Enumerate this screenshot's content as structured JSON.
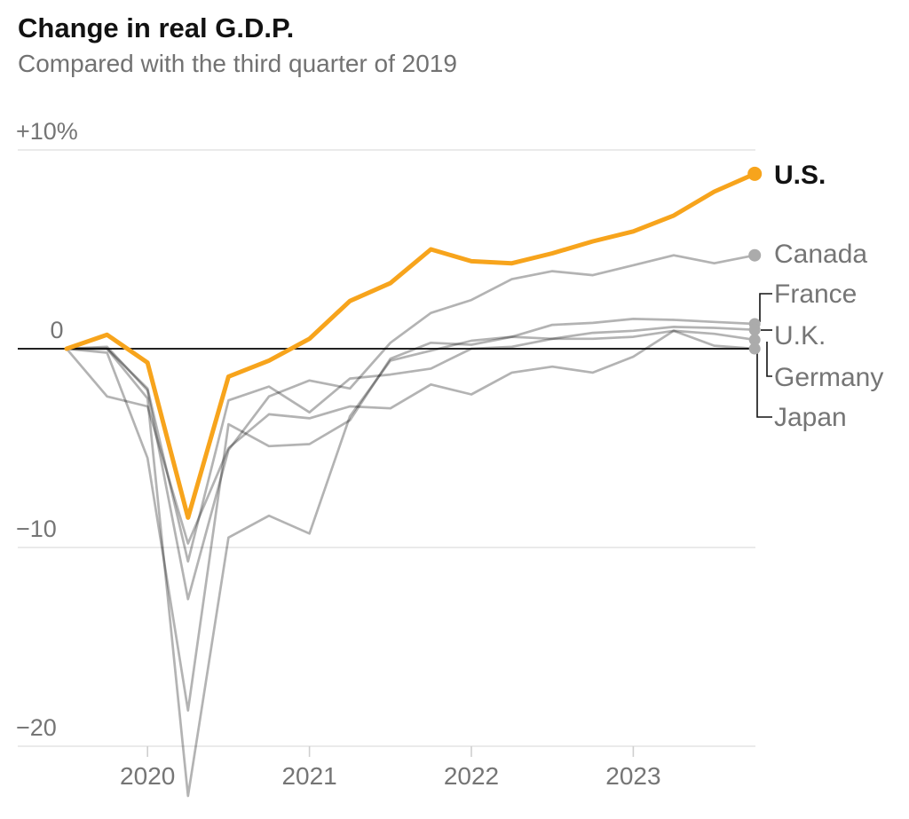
{
  "chart_data": {
    "type": "line",
    "title": "Change in real G.D.P.",
    "subtitle": "Compared with the third quarter of 2019",
    "unit": "percent",
    "baseline_value": 0,
    "x": [
      "2019 Q3",
      "2019 Q4",
      "2020 Q1",
      "2020 Q2",
      "2020 Q3",
      "2020 Q4",
      "2021 Q1",
      "2021 Q2",
      "2021 Q3",
      "2021 Q4",
      "2022 Q1",
      "2022 Q2",
      "2022 Q3",
      "2022 Q4",
      "2023 Q1",
      "2023 Q2",
      "2023 Q3",
      "2023 Q4"
    ],
    "x_tick_labels": [
      {
        "label": "2020",
        "x_index": 2
      },
      {
        "label": "2021",
        "x_index": 6
      },
      {
        "label": "2022",
        "x_index": 10
      },
      {
        "label": "2023",
        "x_index": 14
      }
    ],
    "y_ticks": [
      {
        "value": 10,
        "label": "+10%"
      },
      {
        "value": 0,
        "label": "0"
      },
      {
        "value": -10,
        "label": "−10"
      },
      {
        "value": -20,
        "label": "−20"
      }
    ],
    "y_range": [
      -24,
      11
    ],
    "grid": true,
    "legend_position": "right-of-line-ends",
    "series": [
      {
        "name": "U.S.",
        "color": "#F7A41C",
        "emphasis": true,
        "values": [
          0,
          0.7,
          -0.7,
          -8.5,
          -1.4,
          -0.6,
          0.5,
          2.4,
          3.3,
          5.0,
          4.4,
          4.3,
          4.8,
          5.4,
          5.9,
          6.7,
          7.9,
          8.8
        ]
      },
      {
        "name": "Canada",
        "color": "#B3B3B3",
        "emphasis": false,
        "values": [
          0,
          0.1,
          -2.1,
          -12.6,
          -5.1,
          -2.4,
          -1.6,
          -2.0,
          0.3,
          1.8,
          2.45,
          3.5,
          3.9,
          3.7,
          4.2,
          4.7,
          4.3,
          4.7
        ]
      },
      {
        "name": "France",
        "color": "#B3B3B3",
        "emphasis": false,
        "values": [
          0,
          -0.2,
          -5.5,
          -18.2,
          -3.8,
          -4.9,
          -4.8,
          -3.6,
          -0.5,
          0.3,
          0.2,
          0.6,
          1.2,
          1.3,
          1.5,
          1.45,
          1.35,
          1.25
        ]
      },
      {
        "name": "U.K.",
        "color": "#B3B3B3",
        "emphasis": false,
        "values": [
          0,
          0.0,
          -2.5,
          -22.5,
          -9.5,
          -8.4,
          -9.3,
          -3.4,
          -0.6,
          -0.1,
          0.4,
          0.6,
          0.5,
          0.8,
          0.9,
          1.1,
          1.05,
          0.95
        ]
      },
      {
        "name": "Germany",
        "color": "#B3B3B3",
        "emphasis": false,
        "values": [
          0,
          0.0,
          -2.0,
          -10.7,
          -2.6,
          -1.9,
          -3.2,
          -1.5,
          -1.3,
          -1.0,
          0.0,
          0.1,
          0.5,
          0.5,
          0.6,
          0.9,
          0.75,
          0.45
        ]
      },
      {
        "name": "Japan",
        "color": "#B3B3B3",
        "emphasis": false,
        "values": [
          0,
          -2.4,
          -2.9,
          -9.8,
          -5.0,
          -3.3,
          -3.5,
          -2.9,
          -3.0,
          -1.8,
          -2.3,
          -1.2,
          -0.9,
          -1.2,
          -0.4,
          0.9,
          0.15,
          0.0
        ]
      }
    ],
    "colors": {
      "highlight": "#F7A41C",
      "muted_line": "#B3B3B3",
      "title_text": "#121212",
      "subtitle_text": "#727272",
      "axis_text": "#757575",
      "gridline": "#E4E4E4",
      "zero_line": "#222222",
      "connector": "#121212"
    }
  }
}
